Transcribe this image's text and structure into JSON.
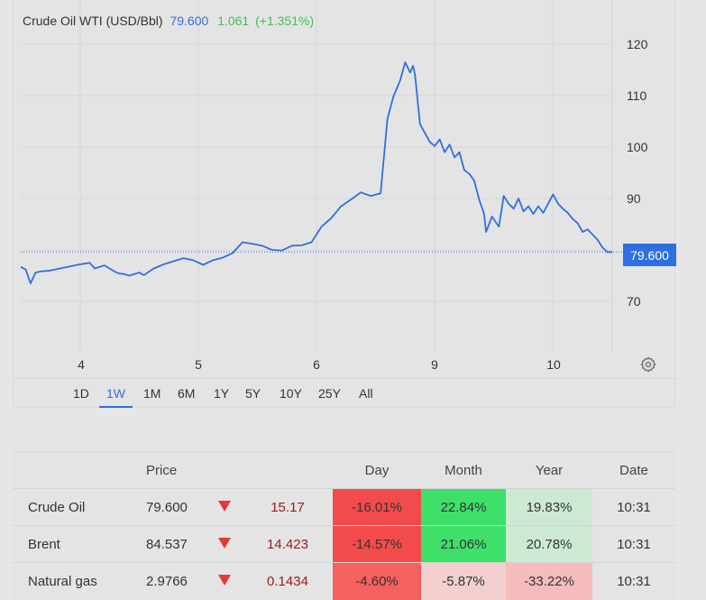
{
  "chart": {
    "instrument": "Crude Oil WTI (USD/Bbl)",
    "last_price": "79.600",
    "change": "1.061",
    "change_pct": "(+1.351%)",
    "price_tag": "79.600",
    "line_color": "#2f6fe0",
    "y_ticks": [
      "120",
      "110",
      "100",
      "90",
      "70"
    ],
    "x_ticks": [
      "4",
      "5",
      "6",
      "9",
      "10"
    ],
    "ranges": [
      "1D",
      "1W",
      "1M",
      "6M",
      "1Y",
      "5Y",
      "10Y",
      "25Y",
      "All"
    ],
    "active_range": "1W"
  },
  "chart_data": {
    "type": "line",
    "title": "Crude Oil WTI (USD/Bbl)",
    "xlabel": "",
    "ylabel": "",
    "ylim": [
      60,
      124
    ],
    "x_tick_labels": [
      "4",
      "5",
      "6",
      "9",
      "10"
    ],
    "reference_line": 79.6,
    "grid": true,
    "series": [
      {
        "name": "Crude Oil WTI",
        "x": [
          0,
          0.05,
          0.1,
          0.15,
          0.2,
          0.3,
          0.45,
          0.6,
          0.7,
          0.75,
          0.85,
          0.95,
          1.0,
          1.05,
          1.1,
          1.2,
          1.25,
          1.35,
          1.45,
          1.55,
          1.65,
          1.75,
          1.85,
          1.95,
          2.05,
          2.15,
          2.25,
          2.35,
          2.45,
          2.55,
          2.65,
          2.75,
          2.85,
          2.95,
          3.05,
          3.15,
          3.25,
          3.35,
          3.45,
          3.55,
          3.65,
          3.72,
          3.78,
          3.85,
          3.9,
          3.95,
          3.98,
          4.0,
          4.05,
          4.1,
          4.15,
          4.2,
          4.25,
          4.3,
          4.35,
          4.4,
          4.45,
          4.5,
          4.55,
          4.6,
          4.65,
          4.7,
          4.72,
          4.78,
          4.85,
          4.9,
          4.95,
          5.0,
          5.05,
          5.1,
          5.15,
          5.2,
          5.25,
          5.3,
          5.35,
          5.4,
          5.45,
          5.5,
          5.55,
          5.6,
          5.65,
          5.7,
          5.75,
          5.8,
          5.85,
          5.9,
          5.95,
          6.0
        ],
        "values": [
          76.7,
          76.2,
          73.5,
          75.6,
          75.8,
          76.0,
          76.6,
          77.2,
          77.5,
          76.4,
          77.0,
          75.8,
          75.4,
          75.3,
          75.0,
          75.6,
          75.1,
          76.4,
          77.2,
          77.8,
          78.4,
          78.0,
          77.1,
          78.0,
          78.5,
          79.4,
          81.5,
          81.2,
          80.8,
          80.0,
          79.9,
          80.8,
          80.9,
          81.5,
          84.5,
          86.2,
          88.5,
          89.8,
          91.2,
          90.5,
          91.0,
          105.5,
          109.8,
          113.0,
          116.5,
          114.5,
          115.8,
          114.0,
          104.5,
          102.7,
          101.0,
          100.2,
          101.5,
          99.0,
          100.5,
          98.0,
          99.0,
          95.5,
          94.8,
          93.5,
          89.8,
          87.0,
          83.5,
          86.5,
          84.5,
          90.5,
          89.0,
          88.0,
          90.0,
          87.5,
          88.5,
          87.0,
          88.5,
          87.2,
          89.0,
          90.8,
          89.0,
          88.0,
          87.2,
          86.0,
          85.2,
          83.5,
          84.0,
          83.0,
          82.0,
          80.5,
          79.6,
          79.6
        ]
      }
    ]
  },
  "table": {
    "headers": [
      "",
      "Price",
      "",
      "",
      "Day",
      "Month",
      "Year",
      "Date"
    ],
    "rows": [
      {
        "name": "Crude Oil",
        "price": "79.600",
        "change": "15.17",
        "day": "-16.01%",
        "month": "22.84%",
        "year": "19.83%",
        "date": "10:31",
        "day_color": "#f34b4b",
        "month_color": "#3fe06a",
        "year_color": "#cde9d4"
      },
      {
        "name": "Brent",
        "price": "84.537",
        "change": "14.423",
        "day": "-14.57%",
        "month": "21.06%",
        "year": "20.78%",
        "date": "10:31",
        "day_color": "#f34b4b",
        "month_color": "#3fe06a",
        "year_color": "#cde9d4"
      },
      {
        "name": "Natural gas",
        "price": "2.9766",
        "change": "0.1434",
        "day": "-4.60%",
        "month": "-5.87%",
        "year": "-33.22%",
        "date": "10:31",
        "day_color": "#f56060",
        "month_color": "#f3cfcf",
        "year_color": "#f4bcbc"
      }
    ]
  }
}
